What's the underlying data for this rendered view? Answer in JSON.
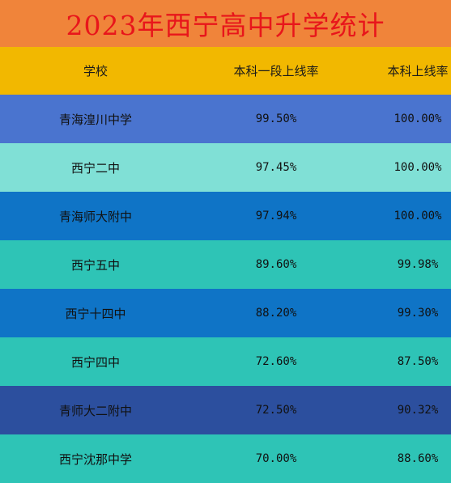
{
  "title": "2023年西宁高中升学统计",
  "colors": {
    "title_bg": "#f0843a",
    "title_text": "#e8161b",
    "header_bg": "#f2b800"
  },
  "header": {
    "school": "学校",
    "tier1_rate": "本科一段上线率",
    "bachelor_rate": "本科上线率"
  },
  "rows": [
    {
      "school": "青海湟川中学",
      "tier1_rate": "99.50%",
      "bachelor_rate": "100.00%",
      "bg": "#4a74cf"
    },
    {
      "school": "西宁二中",
      "tier1_rate": "97.45%",
      "bachelor_rate": "100.00%",
      "bg": "#80e0d6"
    },
    {
      "school": "青海师大附中",
      "tier1_rate": "97.94%",
      "bachelor_rate": "100.00%",
      "bg": "#0f74c6"
    },
    {
      "school": "西宁五中",
      "tier1_rate": "89.60%",
      "bachelor_rate": "99.98%",
      "bg": "#2ec4b6"
    },
    {
      "school": "西宁十四中",
      "tier1_rate": "88.20%",
      "bachelor_rate": "99.30%",
      "bg": "#0f74c6"
    },
    {
      "school": "西宁四中",
      "tier1_rate": "72.60%",
      "bachelor_rate": "87.50%",
      "bg": "#2ec4b6"
    },
    {
      "school": "青师大二附中",
      "tier1_rate": "72.50%",
      "bachelor_rate": "90.32%",
      "bg": "#2c4f9e"
    },
    {
      "school": "西宁沈那中学",
      "tier1_rate": "70.00%",
      "bachelor_rate": "88.60%",
      "bg": "#2ec4b6"
    }
  ]
}
